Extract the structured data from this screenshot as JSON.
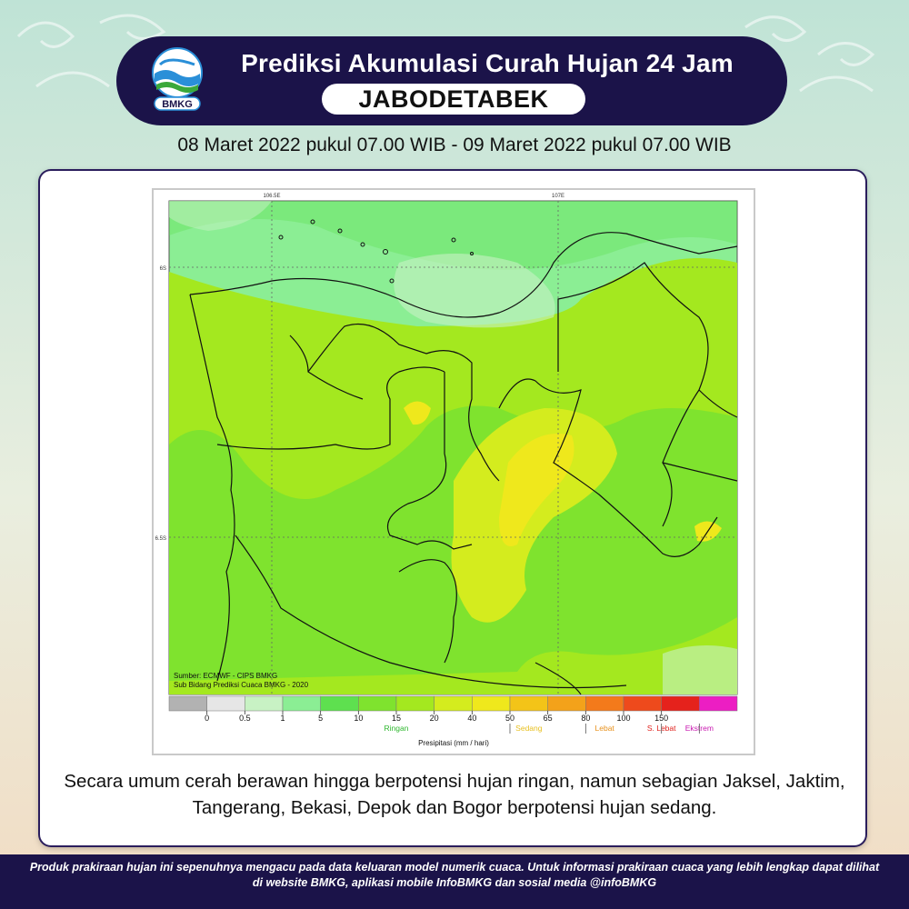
{
  "header": {
    "logo_text": "BMKG",
    "title": "Prediksi Akumulasi Curah Hujan 24 Jam",
    "region": "JABODETABEK",
    "date_range": "08 Maret 2022 pukul 07.00 WIB - 09 Maret 2022 pukul 07.00 WIB"
  },
  "map": {
    "top_ticks": [
      "106.5E",
      "107E"
    ],
    "left_ticks": [
      "6S",
      "6.5S"
    ],
    "source_line1": "Sumber: ECMWF - CIPS BMKG",
    "source_line2": "Sub Bidang Prediksi Cuaca BMKG - 2020"
  },
  "legend": {
    "colors": [
      "#b2b2b2",
      "#e6e6e6",
      "#c8f2c4",
      "#8bee94",
      "#5ee04f",
      "#7fe32e",
      "#a4e81f",
      "#d4ec1e",
      "#efe81c",
      "#f3c418",
      "#f3a21a",
      "#f37a1b",
      "#ee4a1c",
      "#e5221c",
      "#ec1ec3"
    ],
    "ticks": [
      "0",
      "0.5",
      "1",
      "5",
      "10",
      "15",
      "20",
      "40",
      "50",
      "65",
      "80",
      "100",
      "150"
    ],
    "categories": [
      "Ringan",
      "Sedang",
      "Lebat",
      "S. Lebat",
      "Ekstrem"
    ],
    "category_colors": [
      "#2eb82e",
      "#e8c020",
      "#e8901a",
      "#e0201c",
      "#c818b0"
    ],
    "axis_label": "Presipitasi (mm / hari)"
  },
  "description": "Secara umum cerah berawan hingga berpotensi hujan ringan, namun sebagian Jaksel, Jaktim, Tangerang, Bekasi, Depok dan Bogor berpotensi hujan sedang.",
  "footer": "Produk prakiraan hujan ini sepenuhnya mengacu pada data keluaran model numerik cuaca. Untuk informasi prakiraan cuaca yang lebih lengkap dapat dilihat di website BMKG, aplikasi mobile InfoBMKG dan sosial media @infoBMKG"
}
